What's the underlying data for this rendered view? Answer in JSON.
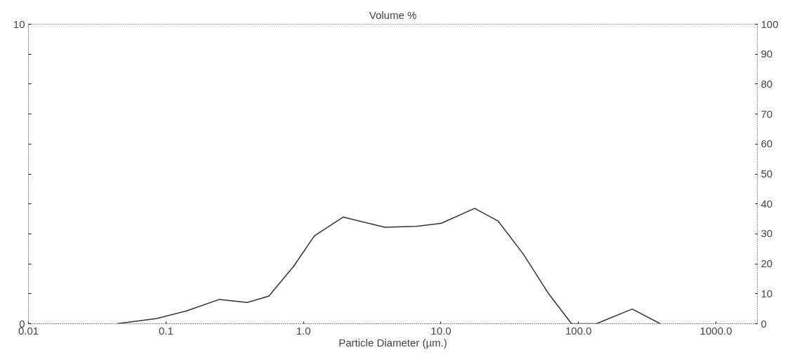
{
  "chart_data": {
    "type": "line",
    "ylabel": "Volume %",
    "xlabel": "Particle Diameter (µm.)",
    "log": "x",
    "grid": false,
    "marker": "none",
    "line_style": "solid",
    "xlim": [
      0.01,
      2000
    ],
    "xticks": [
      {
        "value": 0.01,
        "label": "0.01"
      },
      {
        "value": 0.1,
        "label": "0.1"
      },
      {
        "value": 1,
        "label": "1.0"
      },
      {
        "value": 10,
        "label": "10.0"
      },
      {
        "value": 100,
        "label": "100.0"
      },
      {
        "value": 1000,
        "label": "1000.0"
      }
    ],
    "ylim": [
      0,
      10
    ],
    "yticks": [
      0,
      {
        "value": 1,
        "label": null
      },
      {
        "value": 2,
        "label": null
      },
      {
        "value": 3,
        "label": null
      },
      {
        "value": 4,
        "label": null
      },
      {
        "value": 5,
        "label": null
      },
      {
        "value": 6,
        "label": null
      },
      {
        "value": 7,
        "label": null
      },
      {
        "value": 8,
        "label": null
      },
      {
        "value": 9,
        "label": null
      },
      10
    ],
    "y2lim": [
      0,
      100
    ],
    "y2ticks": [
      0,
      10,
      20,
      30,
      40,
      50,
      60,
      70,
      80,
      90,
      100
    ],
    "series": [
      {
        "color": "#333333",
        "x": [
          0.044,
          0.085,
          0.14,
          0.245,
          0.39,
          0.56,
          0.85,
          1.2,
          1.95,
          3.9,
          6.6,
          10,
          17.6,
          26,
          39.5,
          60.7,
          89,
          135,
          246,
          393
        ],
        "values": [
          0,
          0.17,
          0.42,
          0.81,
          0.71,
          0.92,
          1.92,
          2.93,
          3.56,
          3.22,
          3.25,
          3.35,
          3.85,
          3.43,
          2.34,
          1.0,
          0,
          0,
          0.49,
          0
        ]
      }
    ]
  }
}
